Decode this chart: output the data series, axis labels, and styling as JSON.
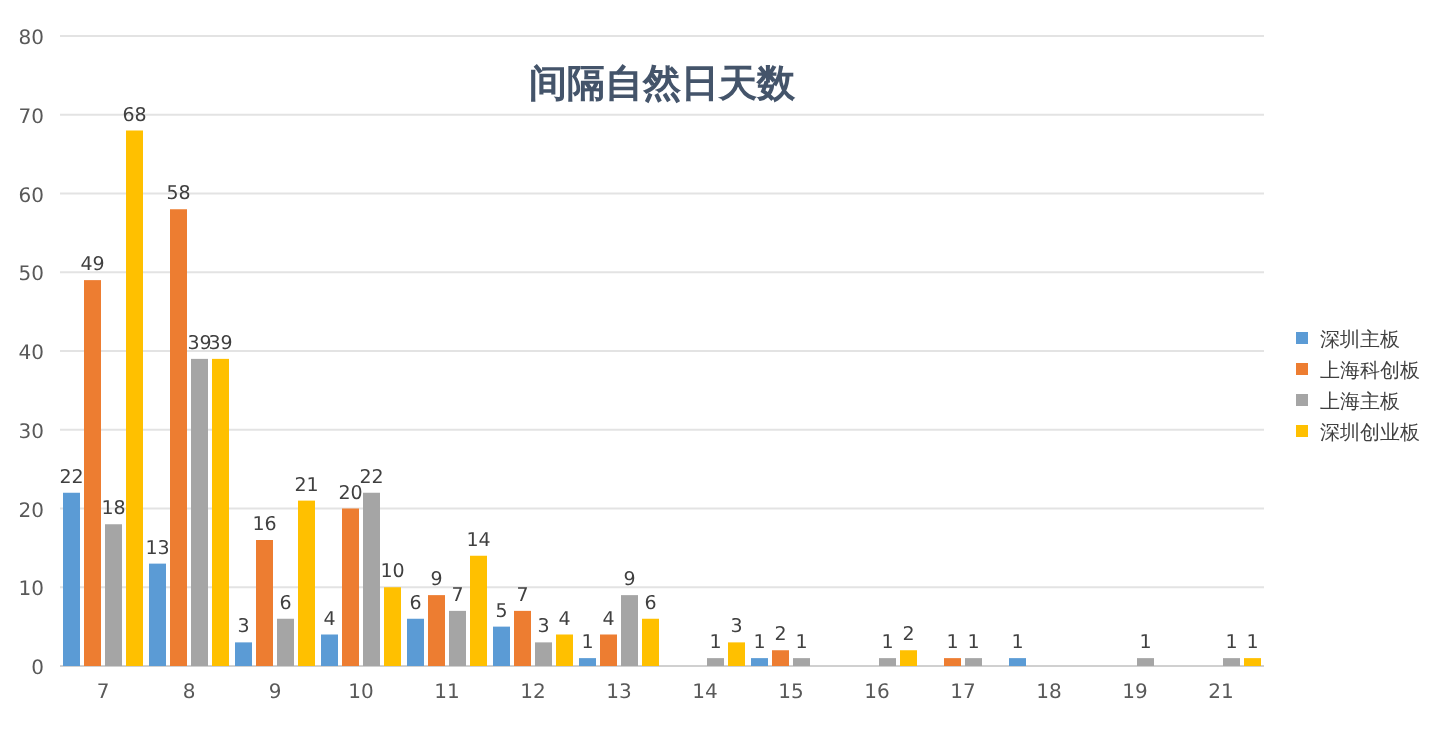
{
  "chart_data": {
    "type": "bar",
    "title": "间隔自然日天数",
    "categories": [
      "7",
      "8",
      "9",
      "10",
      "11",
      "12",
      "13",
      "14",
      "15",
      "16",
      "17",
      "18",
      "19",
      "21"
    ],
    "series": [
      {
        "name": "深圳主板",
        "color": "#5b9bd5",
        "values": [
          22,
          13,
          3,
          4,
          6,
          5,
          1,
          null,
          1,
          null,
          null,
          1,
          null,
          null
        ]
      },
      {
        "name": "上海科创板",
        "color": "#ed7d31",
        "values": [
          49,
          58,
          16,
          20,
          9,
          7,
          4,
          null,
          2,
          null,
          1,
          null,
          null,
          null
        ]
      },
      {
        "name": "上海主板",
        "color": "#a5a5a5",
        "values": [
          18,
          39,
          6,
          22,
          7,
          3,
          9,
          1,
          1,
          1,
          1,
          null,
          1,
          1
        ]
      },
      {
        "name": "深圳创业板",
        "color": "#ffc000",
        "values": [
          68,
          39,
          21,
          10,
          14,
          4,
          6,
          3,
          null,
          2,
          null,
          null,
          null,
          1
        ]
      }
    ],
    "ylim": [
      0,
      80
    ],
    "yticks": [
      0,
      10,
      20,
      30,
      40,
      50,
      60,
      70,
      80
    ],
    "grid": "y",
    "legend": "right",
    "data_labels": true
  }
}
